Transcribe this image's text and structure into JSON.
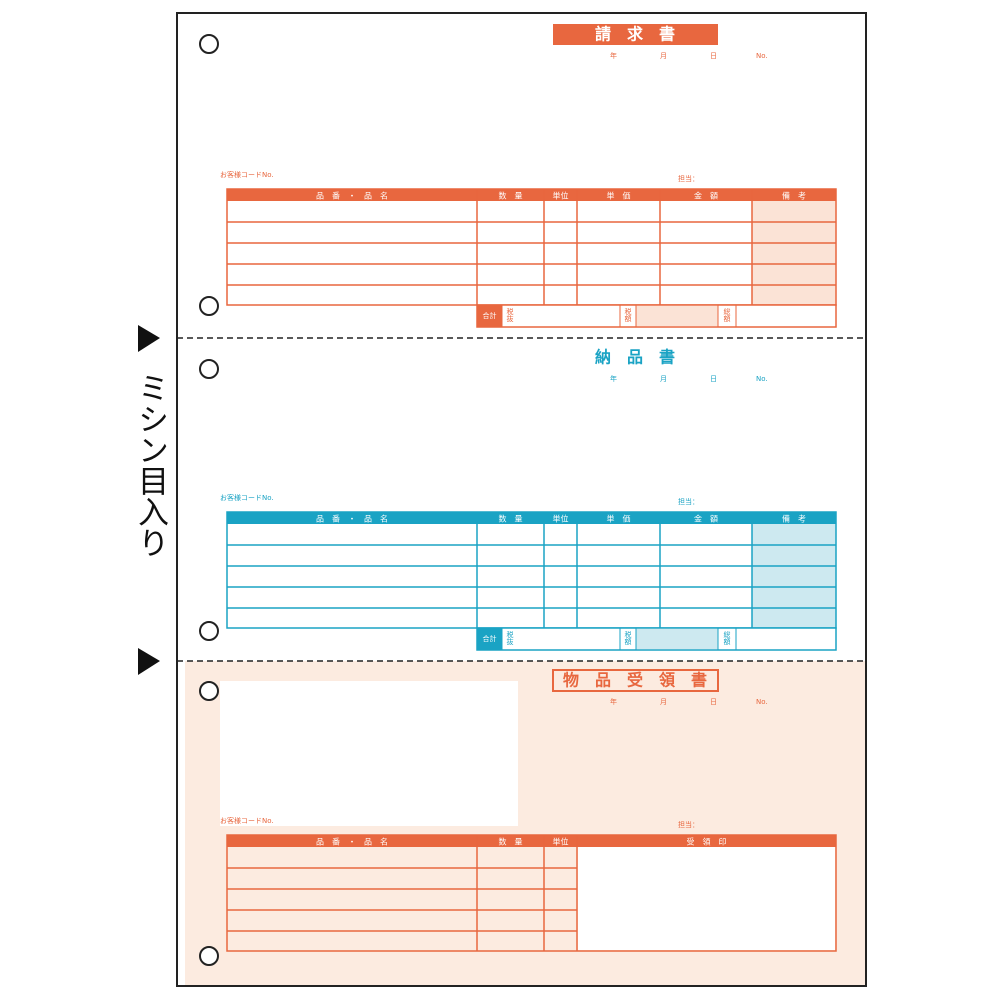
{
  "side_label": "ミシン目入り",
  "sections": [
    {
      "title": "請　求　書",
      "date": [
        "年",
        "月",
        "日",
        "No."
      ],
      "customer_code": "お客様コードNo.",
      "staff": "担当：",
      "headers": [
        "品　番　・　品　名",
        "数　量",
        "単位",
        "単　価",
        "金　額",
        "備　考"
      ],
      "footer": [
        "合計",
        "税抜",
        "税額",
        "総額"
      ]
    },
    {
      "title": "納　品　書",
      "date": [
        "年",
        "月",
        "日",
        "No."
      ],
      "customer_code": "お客様コードNo.",
      "staff": "担当：",
      "headers": [
        "品　番　・　品　名",
        "数　量",
        "単位",
        "単　価",
        "金　額",
        "備　考"
      ],
      "footer": [
        "合計",
        "税抜",
        "税額",
        "総額"
      ]
    },
    {
      "title": "物　品　受　領　書",
      "date": [
        "年",
        "月",
        "日",
        "No."
      ],
      "customer_code": "お客様コードNo.",
      "staff": "担当：",
      "headers": [
        "品　番　・　品　名",
        "数　量",
        "単位",
        "受　領　印"
      ]
    }
  ]
}
